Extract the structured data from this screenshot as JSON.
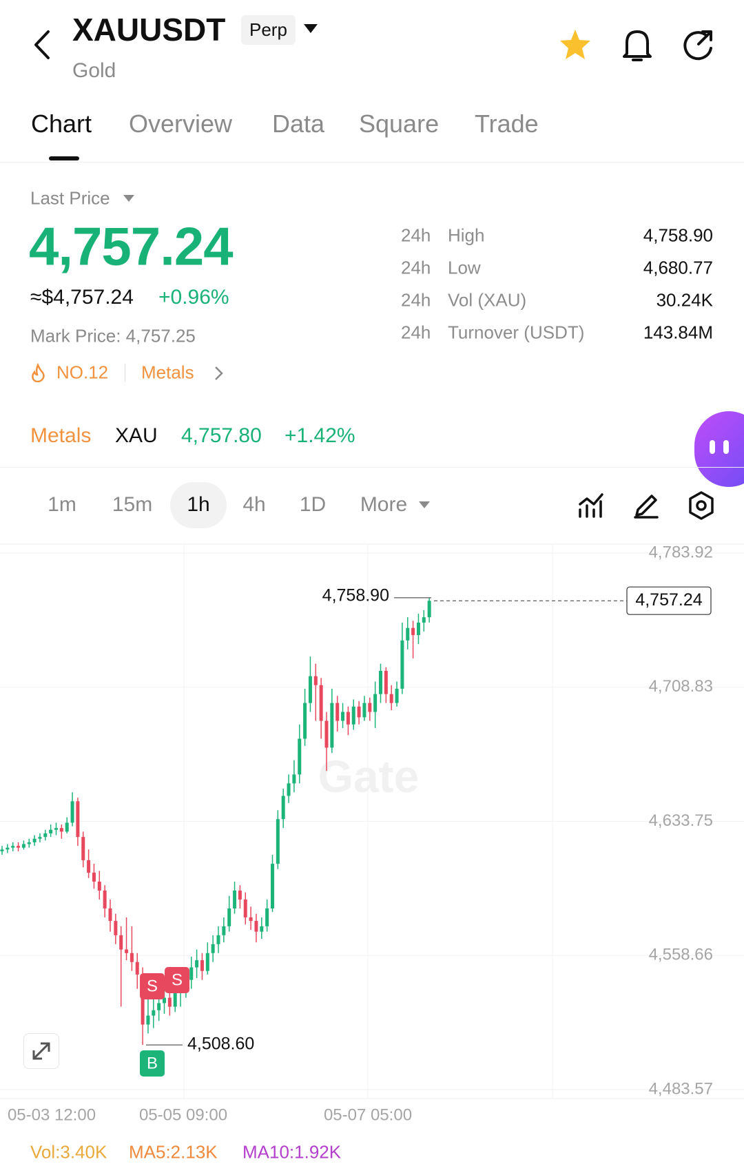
{
  "header": {
    "title": "XAUUSDT",
    "badge": "Perp",
    "subtitle": "Gold"
  },
  "tabs": [
    "Chart",
    "Overview",
    "Data",
    "Square",
    "Trade"
  ],
  "price": {
    "label": "Last Price",
    "last": "4,757.24",
    "usd": "≈$4,757.24",
    "change": "+0.96%",
    "mark": "Mark Price: 4,757.25",
    "rank": "NO.12",
    "sector": "Metals"
  },
  "stats": [
    {
      "period": "24h",
      "label": "High",
      "value": "4,758.90"
    },
    {
      "period": "24h",
      "label": "Low",
      "value": "4,680.77"
    },
    {
      "period": "24h",
      "label": "Vol (XAU)",
      "value": "30.24K"
    },
    {
      "period": "24h",
      "label": "Turnover (USDT)",
      "value": "143.84M"
    }
  ],
  "related": {
    "sector": "Metals",
    "symbol": "XAU",
    "price": "4,757.80",
    "change": "+1.42%"
  },
  "intervals": [
    "1m",
    "15m",
    "1h",
    "4h",
    "1D",
    "More"
  ],
  "chart": {
    "type": "candlestick",
    "up_color": "#1db47a",
    "down_color": "#e8485d",
    "watermark": "Gate",
    "ylim": [
      4483.57,
      4783.92
    ],
    "yticks": [
      {
        "value": 4783.92,
        "label": "4,783.92"
      },
      {
        "value": 4708.83,
        "label": "4,708.83"
      },
      {
        "value": 4633.75,
        "label": "4,633.75"
      },
      {
        "value": 4558.66,
        "label": "4,558.66"
      },
      {
        "value": 4483.57,
        "label": "4,483.57"
      }
    ],
    "xlabels": [
      "05-03 12:00",
      "05-05 09:00",
      "05-07 05:00"
    ],
    "high_marker": {
      "value": 4758.9,
      "label": "4,758.90"
    },
    "low_marker": {
      "value": 4508.6,
      "label": "4,508.60"
    },
    "last_marker": {
      "value": 4757.24,
      "label": "4,757.24"
    },
    "signals": [
      "S",
      "S",
      "B"
    ],
    "candles": [
      [
        4617,
        4620,
        4615,
        4618
      ],
      [
        4618,
        4621,
        4616,
        4619
      ],
      [
        4619,
        4622,
        4617,
        4620
      ],
      [
        4620,
        4622,
        4617,
        4619
      ],
      [
        4619,
        4623,
        4618,
        4621
      ],
      [
        4621,
        4624,
        4619,
        4622
      ],
      [
        4622,
        4626,
        4620,
        4624
      ],
      [
        4624,
        4627,
        4622,
        4625
      ],
      [
        4625,
        4629,
        4623,
        4627
      ],
      [
        4627,
        4632,
        4625,
        4629
      ],
      [
        4629,
        4633,
        4626,
        4630
      ],
      [
        4630,
        4632,
        4624,
        4628
      ],
      [
        4628,
        4636,
        4627,
        4633
      ],
      [
        4633,
        4650,
        4631,
        4645
      ],
      [
        4645,
        4647,
        4620,
        4625
      ],
      [
        4625,
        4628,
        4608,
        4612
      ],
      [
        4612,
        4618,
        4602,
        4605
      ],
      [
        4605,
        4610,
        4596,
        4600
      ],
      [
        4600,
        4606,
        4590,
        4595
      ],
      [
        4595,
        4598,
        4580,
        4585
      ],
      [
        4585,
        4590,
        4572,
        4578
      ],
      [
        4578,
        4582,
        4565,
        4570
      ],
      [
        4570,
        4575,
        4530,
        4562
      ],
      [
        4562,
        4580,
        4556,
        4560
      ],
      [
        4560,
        4575,
        4550,
        4555
      ],
      [
        4555,
        4560,
        4540,
        4548
      ],
      [
        4548,
        4552,
        4508.6,
        4520
      ],
      [
        4520,
        4535,
        4515,
        4525
      ],
      [
        4525,
        4540,
        4518,
        4528
      ],
      [
        4528,
        4545,
        4522,
        4532
      ],
      [
        4532,
        4540,
        4526,
        4535
      ],
      [
        4535,
        4545,
        4525,
        4530
      ],
      [
        4530,
        4542,
        4527,
        4538
      ],
      [
        4538,
        4548,
        4530,
        4540
      ],
      [
        4540,
        4550,
        4535,
        4545
      ],
      [
        4545,
        4558,
        4540,
        4552
      ],
      [
        4552,
        4562,
        4546,
        4556
      ],
      [
        4556,
        4560,
        4545,
        4550
      ],
      [
        4550,
        4566,
        4548,
        4560
      ],
      [
        4560,
        4570,
        4555,
        4565
      ],
      [
        4565,
        4575,
        4560,
        4570
      ],
      [
        4570,
        4580,
        4566,
        4575
      ],
      [
        4575,
        4592,
        4572,
        4585
      ],
      [
        4585,
        4600,
        4582,
        4595
      ],
      [
        4595,
        4598,
        4585,
        4590
      ],
      [
        4590,
        4594,
        4576,
        4580
      ],
      [
        4580,
        4586,
        4573,
        4578
      ],
      [
        4578,
        4582,
        4566,
        4572
      ],
      [
        4572,
        4580,
        4568,
        4575
      ],
      [
        4575,
        4590,
        4572,
        4585
      ],
      [
        4585,
        4615,
        4583,
        4610
      ],
      [
        4610,
        4640,
        4607,
        4635
      ],
      [
        4635,
        4652,
        4630,
        4648
      ],
      [
        4648,
        4660,
        4644,
        4655
      ],
      [
        4655,
        4668,
        4650,
        4660
      ],
      [
        4660,
        4688,
        4655,
        4680
      ],
      [
        4680,
        4708,
        4676,
        4700
      ],
      [
        4700,
        4726,
        4695,
        4715
      ],
      [
        4715,
        4722,
        4690,
        4710
      ],
      [
        4710,
        4714,
        4680,
        4690
      ],
      [
        4690,
        4695,
        4662,
        4675
      ],
      [
        4675,
        4708,
        4672,
        4700
      ],
      [
        4700,
        4704,
        4684,
        4690
      ],
      [
        4690,
        4700,
        4686,
        4695
      ],
      [
        4695,
        4698,
        4682,
        4688
      ],
      [
        4688,
        4702,
        4685,
        4698
      ],
      [
        4698,
        4701,
        4688,
        4692
      ],
      [
        4692,
        4704,
        4690,
        4700
      ],
      [
        4700,
        4703,
        4690,
        4695
      ],
      [
        4695,
        4712,
        4686,
        4705
      ],
      [
        4705,
        4722,
        4700,
        4718
      ],
      [
        4718,
        4720,
        4700,
        4705
      ],
      [
        4705,
        4710,
        4696,
        4700
      ],
      [
        4700,
        4712,
        4698,
        4708
      ],
      [
        4708,
        4745,
        4705,
        4735
      ],
      [
        4735,
        4748,
        4730,
        4742
      ],
      [
        4742,
        4746,
        4725,
        4738
      ],
      [
        4738,
        4750,
        4733,
        4745
      ],
      [
        4745,
        4752,
        4740,
        4748
      ],
      [
        4748,
        4758.9,
        4745,
        4757.24
      ]
    ]
  },
  "indicators": [
    "Vol:3.40K",
    "MA5:2.13K",
    "MA10:1.92K"
  ]
}
